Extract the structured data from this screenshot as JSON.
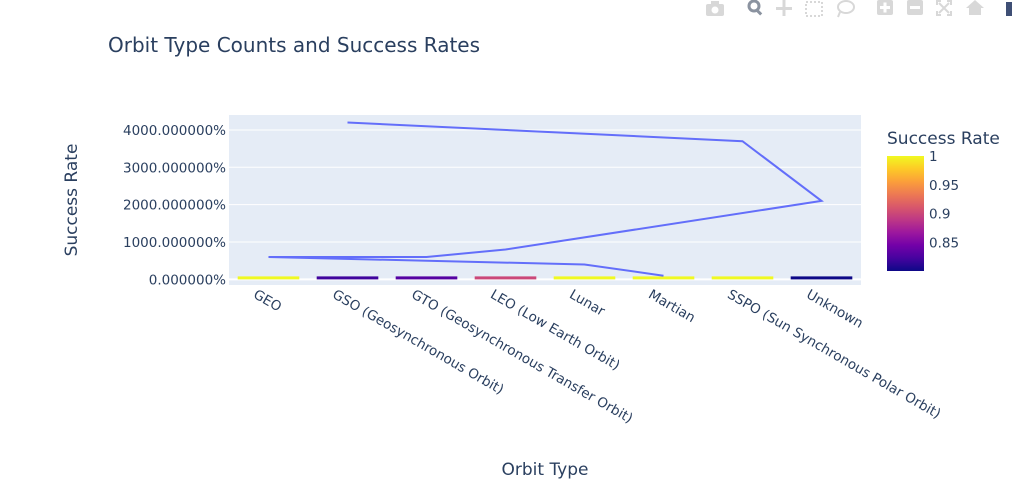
{
  "chart_data": {
    "type": "bar",
    "title": "Orbit Type Counts and Success Rates",
    "xlabel": "Orbit Type",
    "ylabel": "Success Rate",
    "categories": [
      "GEO",
      "GSO (Geosynchronous Orbit)",
      "GTO (Geosynchronous Transfer Orbit)",
      "LEO (Low Earth Orbit)",
      "Lunar",
      "Martian",
      "SSPO (Sun Synchronous Polar Orbit)",
      "Unknown"
    ],
    "ylim": [
      -150,
      4400
    ],
    "y_ticks": [
      0,
      1000,
      2000,
      3000,
      4000
    ],
    "y_tick_labels": [
      "0.000000%",
      "1000.000000%",
      "2000.000000%",
      "3000.000000%",
      "4000.000000%"
    ],
    "series": [
      {
        "type": "bar",
        "values": [
          1,
          0.82,
          0.83,
          0.9,
          1,
          1,
          1,
          0.8
        ],
        "colorscale_field": "Success Rate"
      },
      {
        "type": "line",
        "color": "#636efa",
        "points": [
          {
            "x": "Martian",
            "y": 100
          },
          {
            "x": "Lunar",
            "y": 400
          },
          {
            "x": "GEO",
            "y": 600
          },
          {
            "x": "GTO (Geosynchronous Transfer Orbit)",
            "y": 600
          },
          {
            "x": "LEO (Low Earth Orbit)",
            "y": 800
          },
          {
            "x": "Unknown",
            "y": 2100
          },
          {
            "x": "SSPO (Sun Synchronous Polar Orbit)",
            "y": 3700
          },
          {
            "x": "GSO (Geosynchronous Orbit)",
            "y": 4200
          }
        ]
      }
    ],
    "colorbar": {
      "title": "Success Rate",
      "ticks": [
        0.85,
        0.9,
        0.95,
        1
      ],
      "tick_labels": [
        "0.85",
        "0.9",
        "0.95",
        "1"
      ],
      "range": [
        0.8,
        1
      ],
      "colors": [
        "#0d0887",
        "#46039f",
        "#7201a8",
        "#9c179e",
        "#bd3786",
        "#d8576b",
        "#ed7953",
        "#fb9f3a",
        "#fdca26",
        "#f0f921"
      ]
    },
    "grid": true,
    "legend": "colorbar-right"
  }
}
